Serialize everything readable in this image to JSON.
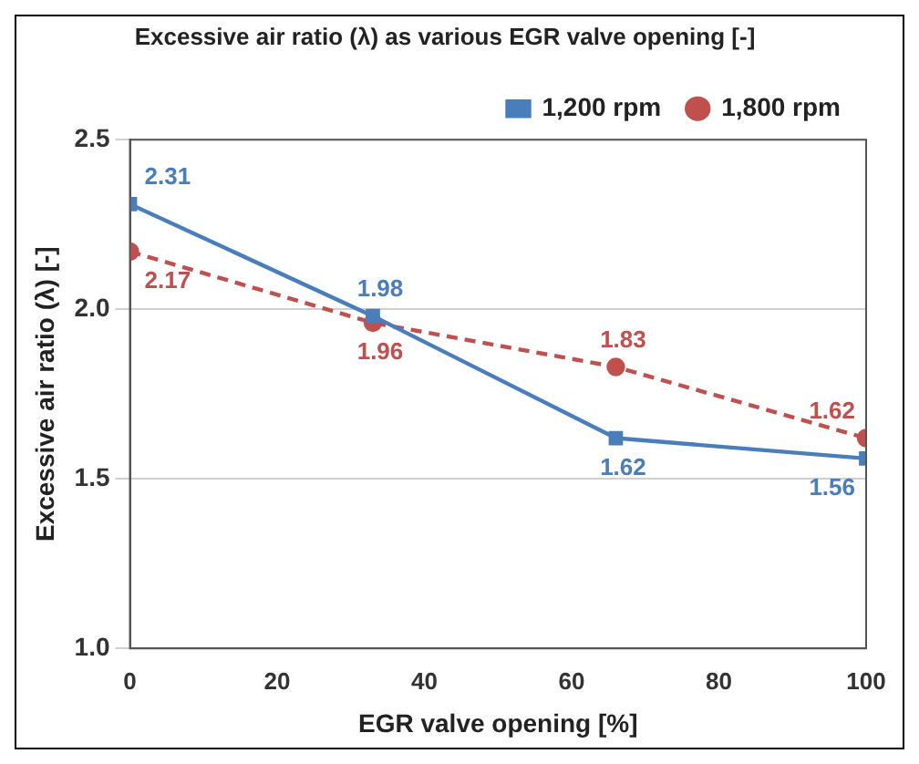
{
  "chart_data": {
    "type": "line",
    "title": "Excessive air ratio (λ) as various EGR valve opening [-]",
    "xlabel": "EGR valve opening [%]",
    "ylabel": "Excessive air ratio (λ) [-]",
    "x": [
      0,
      33,
      66,
      100
    ],
    "series": [
      {
        "name": "1,200 rpm",
        "color": "#4a7ebb",
        "values": [
          2.31,
          1.98,
          1.62,
          1.56
        ],
        "marker": "square",
        "line_style": "solid"
      },
      {
        "name": "1,800 rpm",
        "color": "#c0504d",
        "values": [
          2.17,
          1.96,
          1.83,
          1.62
        ],
        "marker": "circle",
        "line_style": "dashed"
      }
    ],
    "xlim": [
      0,
      100
    ],
    "xticks": [
      0,
      20,
      40,
      60,
      80,
      100
    ],
    "ylim": [
      1,
      2.5
    ],
    "yticks": [
      {
        "value": 1,
        "label": "1.0"
      },
      {
        "value": 1.5,
        "label": "1.5"
      },
      {
        "value": 2,
        "label": "2.0"
      },
      {
        "value": 2.5,
        "label": "2.5"
      }
    ],
    "grid": "y",
    "legend": "top right",
    "data_labels": true
  }
}
